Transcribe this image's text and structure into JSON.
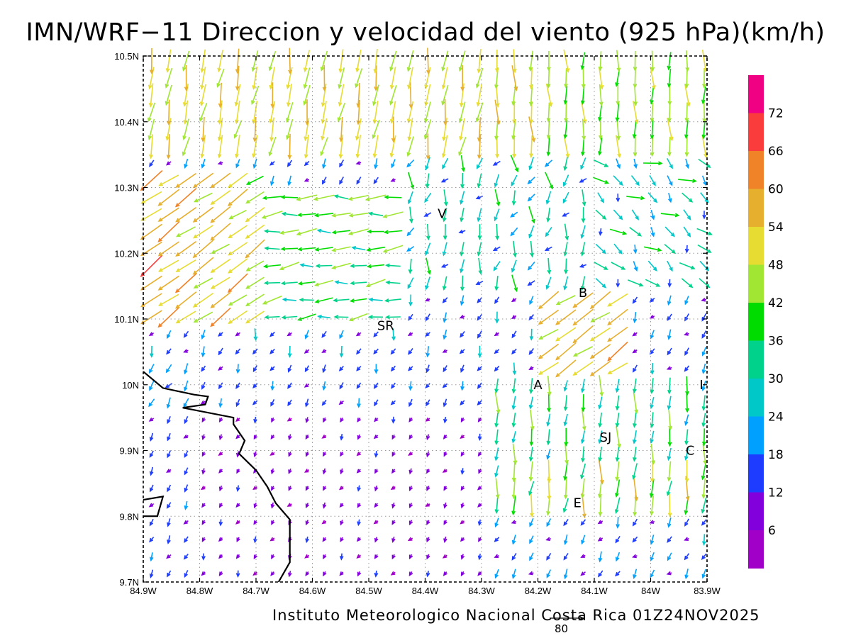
{
  "title": "IMN/WRF−11 Direccion y velocidad del viento (925 hPa)(km/h)",
  "footer": "Instituto Meteorologico Nacional Costa Rica 01Z24NOV2025",
  "axes": {
    "x_ticks": [
      "84.9W",
      "84.8W",
      "84.7W",
      "84.6W",
      "84.5W",
      "84.4W",
      "84.3W",
      "84.2W",
      "84.1W",
      "84W",
      "83.9W"
    ],
    "y_ticks": [
      "10.5N",
      "10.4N",
      "10.3N",
      "10.2N",
      "10.1N",
      "10N",
      "9.9N",
      "9.8N",
      "9.7N"
    ],
    "lon_range": [
      -84.9,
      -83.9
    ],
    "lat_range": [
      9.7,
      10.5
    ],
    "grid": "dotted"
  },
  "cities": [
    {
      "label": "V",
      "lon": -84.37,
      "lat": 10.26
    },
    {
      "label": "B",
      "lon": -84.12,
      "lat": 10.14
    },
    {
      "label": "SR",
      "lon": -84.47,
      "lat": 10.09
    },
    {
      "label": "A",
      "lon": -84.2,
      "lat": 10.0
    },
    {
      "label": "I",
      "lon": -83.91,
      "lat": 10.0
    },
    {
      "label": "SJ",
      "lon": -84.08,
      "lat": 9.92
    },
    {
      "label": "C",
      "lon": -83.93,
      "lat": 9.9
    },
    {
      "label": "E",
      "lon": -84.13,
      "lat": 9.82
    }
  ],
  "colorbar": {
    "labels": [
      "72",
      "66",
      "60",
      "54",
      "48",
      "42",
      "36",
      "30",
      "24",
      "18",
      "12",
      "6"
    ],
    "bands": [
      {
        "min": 0,
        "max": 6,
        "color": "#a000c8"
      },
      {
        "min": 6,
        "max": 12,
        "color": "#8200dc"
      },
      {
        "min": 12,
        "max": 18,
        "color": "#1e3cff"
      },
      {
        "min": 18,
        "max": 24,
        "color": "#00a0ff"
      },
      {
        "min": 24,
        "max": 30,
        "color": "#00c8c8"
      },
      {
        "min": 30,
        "max": 36,
        "color": "#00d28c"
      },
      {
        "min": 36,
        "max": 42,
        "color": "#00dc00"
      },
      {
        "min": 42,
        "max": 48,
        "color": "#a0e632"
      },
      {
        "min": 48,
        "max": 54,
        "color": "#e6dc32"
      },
      {
        "min": 54,
        "max": 60,
        "color": "#e6af2d"
      },
      {
        "min": 60,
        "max": 66,
        "color": "#f08228"
      },
      {
        "min": 66,
        "max": 72,
        "color": "#fa3c3c"
      },
      {
        "min": 72,
        "max": 78,
        "color": "#f00082"
      }
    ]
  },
  "reference_vector": {
    "label": "80",
    "speed": 80
  },
  "coastline": [
    [
      -84.9,
      10.02
    ],
    [
      -84.865,
      9.995
    ],
    [
      -84.81,
      9.985
    ],
    [
      -84.785,
      9.982
    ],
    [
      -84.79,
      9.97
    ],
    [
      -84.83,
      9.965
    ],
    [
      -84.74,
      9.95
    ],
    [
      -84.74,
      9.94
    ],
    [
      -84.72,
      9.915
    ],
    [
      -84.73,
      9.895
    ],
    [
      -84.7,
      9.87
    ],
    [
      -84.68,
      9.845
    ],
    [
      -84.665,
      9.82
    ],
    [
      -84.64,
      9.795
    ],
    [
      -84.64,
      9.765
    ],
    [
      -84.64,
      9.73
    ],
    [
      -84.66,
      9.7
    ]
  ],
  "coastline2": [
    [
      -84.9,
      9.825
    ],
    [
      -84.865,
      9.83
    ],
    [
      -84.875,
      9.8
    ],
    [
      -84.9,
      9.8
    ]
  ],
  "wind_field": {
    "regions": [
      {
        "name": "north-band",
        "lat": [
          10.34,
          10.5
        ],
        "lon": [
          -84.9,
          -83.9
        ],
        "dir_deg": 260,
        "speed": 50
      },
      {
        "name": "northwest-jet",
        "lat": [
          10.1,
          10.32
        ],
        "lon": [
          -84.9,
          -84.7
        ],
        "dir_deg": 215,
        "speed": 58
      },
      {
        "name": "central-north",
        "lat": [
          10.1,
          10.3
        ],
        "lon": [
          -84.7,
          -84.45
        ],
        "dir_deg": 185,
        "speed": 34
      },
      {
        "name": "central-calm",
        "lat": [
          9.7,
          10.05
        ],
        "lon": [
          -84.9,
          -84.3
        ],
        "dir_deg": 240,
        "speed": 9
      },
      {
        "name": "valley-east",
        "lat": [
          9.8,
          10.0
        ],
        "lon": [
          -84.3,
          -83.9
        ],
        "dir_deg": 265,
        "speed": 34
      },
      {
        "name": "barva-slope",
        "lat": [
          10.0,
          10.15
        ],
        "lon": [
          -84.2,
          -84.05
        ],
        "dir_deg": 215,
        "speed": 54
      }
    ]
  }
}
